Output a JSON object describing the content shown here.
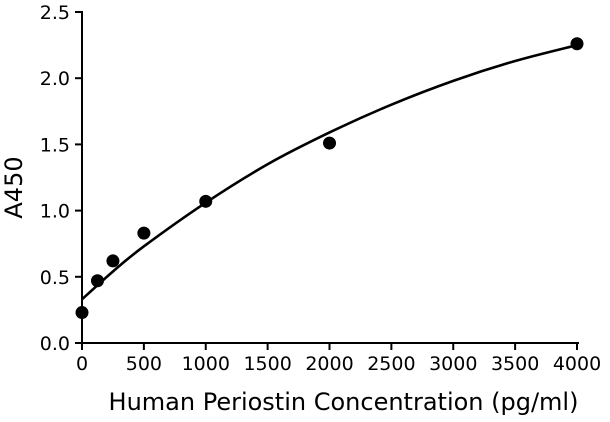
{
  "chart_data": {
    "type": "scatter",
    "title": "",
    "xlabel": "Human Periostin Concentration (pg/ml)",
    "ylabel": "A450",
    "xlim": [
      0,
      4000
    ],
    "ylim": [
      0,
      2.5
    ],
    "x_ticks": [
      0,
      500,
      1000,
      1500,
      2000,
      2500,
      3000,
      3500,
      4000
    ],
    "y_ticks": [
      0.0,
      0.5,
      1.0,
      1.5,
      2.0,
      2.5
    ],
    "x_tick_labels": [
      "0",
      "500",
      "1000",
      "1500",
      "2000",
      "2500",
      "3000",
      "3500",
      "4000"
    ],
    "y_tick_labels": [
      "0.0",
      "0.5",
      "1.0",
      "1.5",
      "2.0",
      "2.5"
    ],
    "grid": false,
    "legend": false,
    "series": [
      {
        "type": "scatter",
        "x": [
          0,
          125,
          250,
          500,
          1000,
          2000,
          4000
        ],
        "y": [
          0.23,
          0.47,
          0.62,
          0.83,
          1.07,
          1.51,
          2.26
        ],
        "color": "#000000"
      },
      {
        "type": "line",
        "style": "fitted curve",
        "x": [
          0,
          250,
          500,
          1000,
          1500,
          2000,
          2500,
          3000,
          3500,
          4000
        ],
        "y": [
          0.33,
          0.54,
          0.73,
          1.06,
          1.35,
          1.59,
          1.8,
          1.98,
          2.13,
          2.25
        ],
        "color": "#000000"
      }
    ]
  }
}
